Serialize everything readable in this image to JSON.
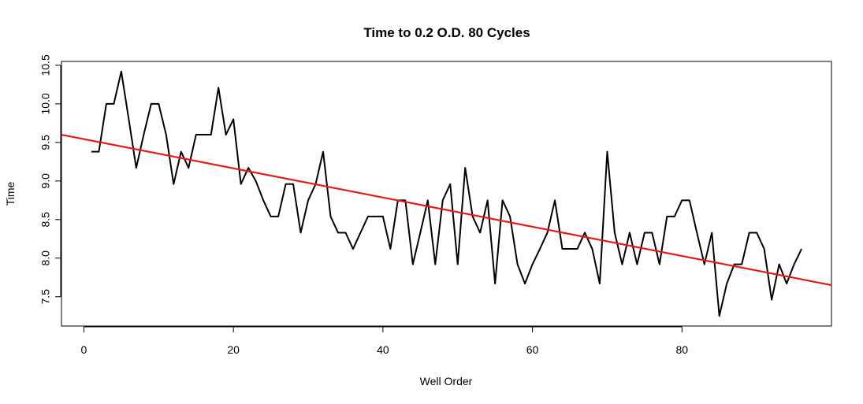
{
  "chart_data": {
    "type": "line",
    "title": "Time to 0.2 O.D. 80 Cycles",
    "xlabel": "Well Order",
    "ylabel": "Time",
    "xlim": [
      -3,
      100
    ],
    "ylim": [
      7.12,
      10.55
    ],
    "x_ticks": [
      0,
      20,
      40,
      60,
      80
    ],
    "y_ticks": [
      7.5,
      8.0,
      8.5,
      9.0,
      9.5,
      10.0,
      10.5
    ],
    "grid": false,
    "legend": "none",
    "series": [
      {
        "color": "#000000",
        "x": [
          1,
          2,
          3,
          4,
          5,
          6,
          7,
          8,
          9,
          10,
          11,
          12,
          13,
          14,
          15,
          16,
          17,
          18,
          19,
          20,
          21,
          22,
          23,
          24,
          25,
          26,
          27,
          28,
          29,
          30,
          31,
          32,
          33,
          34,
          35,
          36,
          37,
          38,
          39,
          40,
          41,
          42,
          43,
          44,
          45,
          46,
          47,
          48,
          49,
          50,
          51,
          52,
          53,
          54,
          55,
          56,
          57,
          58,
          59,
          60,
          61,
          62,
          63,
          64,
          65,
          66,
          67,
          68,
          69,
          70,
          71,
          72,
          73,
          74,
          75,
          76,
          77,
          78,
          79,
          80,
          81,
          82,
          83,
          84,
          85,
          86,
          87,
          88,
          89,
          90,
          91,
          92,
          93,
          94,
          95,
          96
        ],
        "y": [
          9.38,
          9.38,
          10.0,
          10.0,
          10.42,
          9.8,
          9.17,
          9.6,
          10.0,
          10.0,
          9.6,
          8.96,
          9.38,
          9.17,
          9.6,
          9.6,
          9.6,
          10.21,
          9.6,
          9.8,
          8.96,
          9.17,
          9.0,
          8.75,
          8.54,
          8.54,
          8.96,
          8.96,
          8.33,
          8.75,
          8.96,
          9.38,
          8.54,
          8.33,
          8.33,
          8.12,
          8.33,
          8.54,
          8.54,
          8.54,
          8.12,
          8.75,
          8.75,
          7.92,
          8.33,
          8.75,
          7.92,
          8.75,
          8.96,
          7.92,
          9.17,
          8.54,
          8.33,
          8.75,
          7.67,
          8.75,
          8.54,
          7.92,
          7.67,
          7.92,
          8.12,
          8.33,
          8.75,
          8.12,
          8.12,
          8.12,
          8.33,
          8.12,
          7.67,
          9.38,
          8.33,
          7.92,
          8.33,
          7.92,
          8.33,
          8.33,
          7.92,
          8.54,
          8.54,
          8.75,
          8.75,
          8.33,
          7.92,
          8.33,
          7.25,
          7.67,
          7.92,
          7.92,
          8.33,
          8.33,
          8.12,
          7.46,
          7.92,
          7.67,
          7.92,
          8.12
        ]
      },
      {
        "color": "#e41a1c",
        "x": [
          -3,
          100
        ],
        "y": [
          9.6,
          7.65
        ]
      }
    ]
  }
}
